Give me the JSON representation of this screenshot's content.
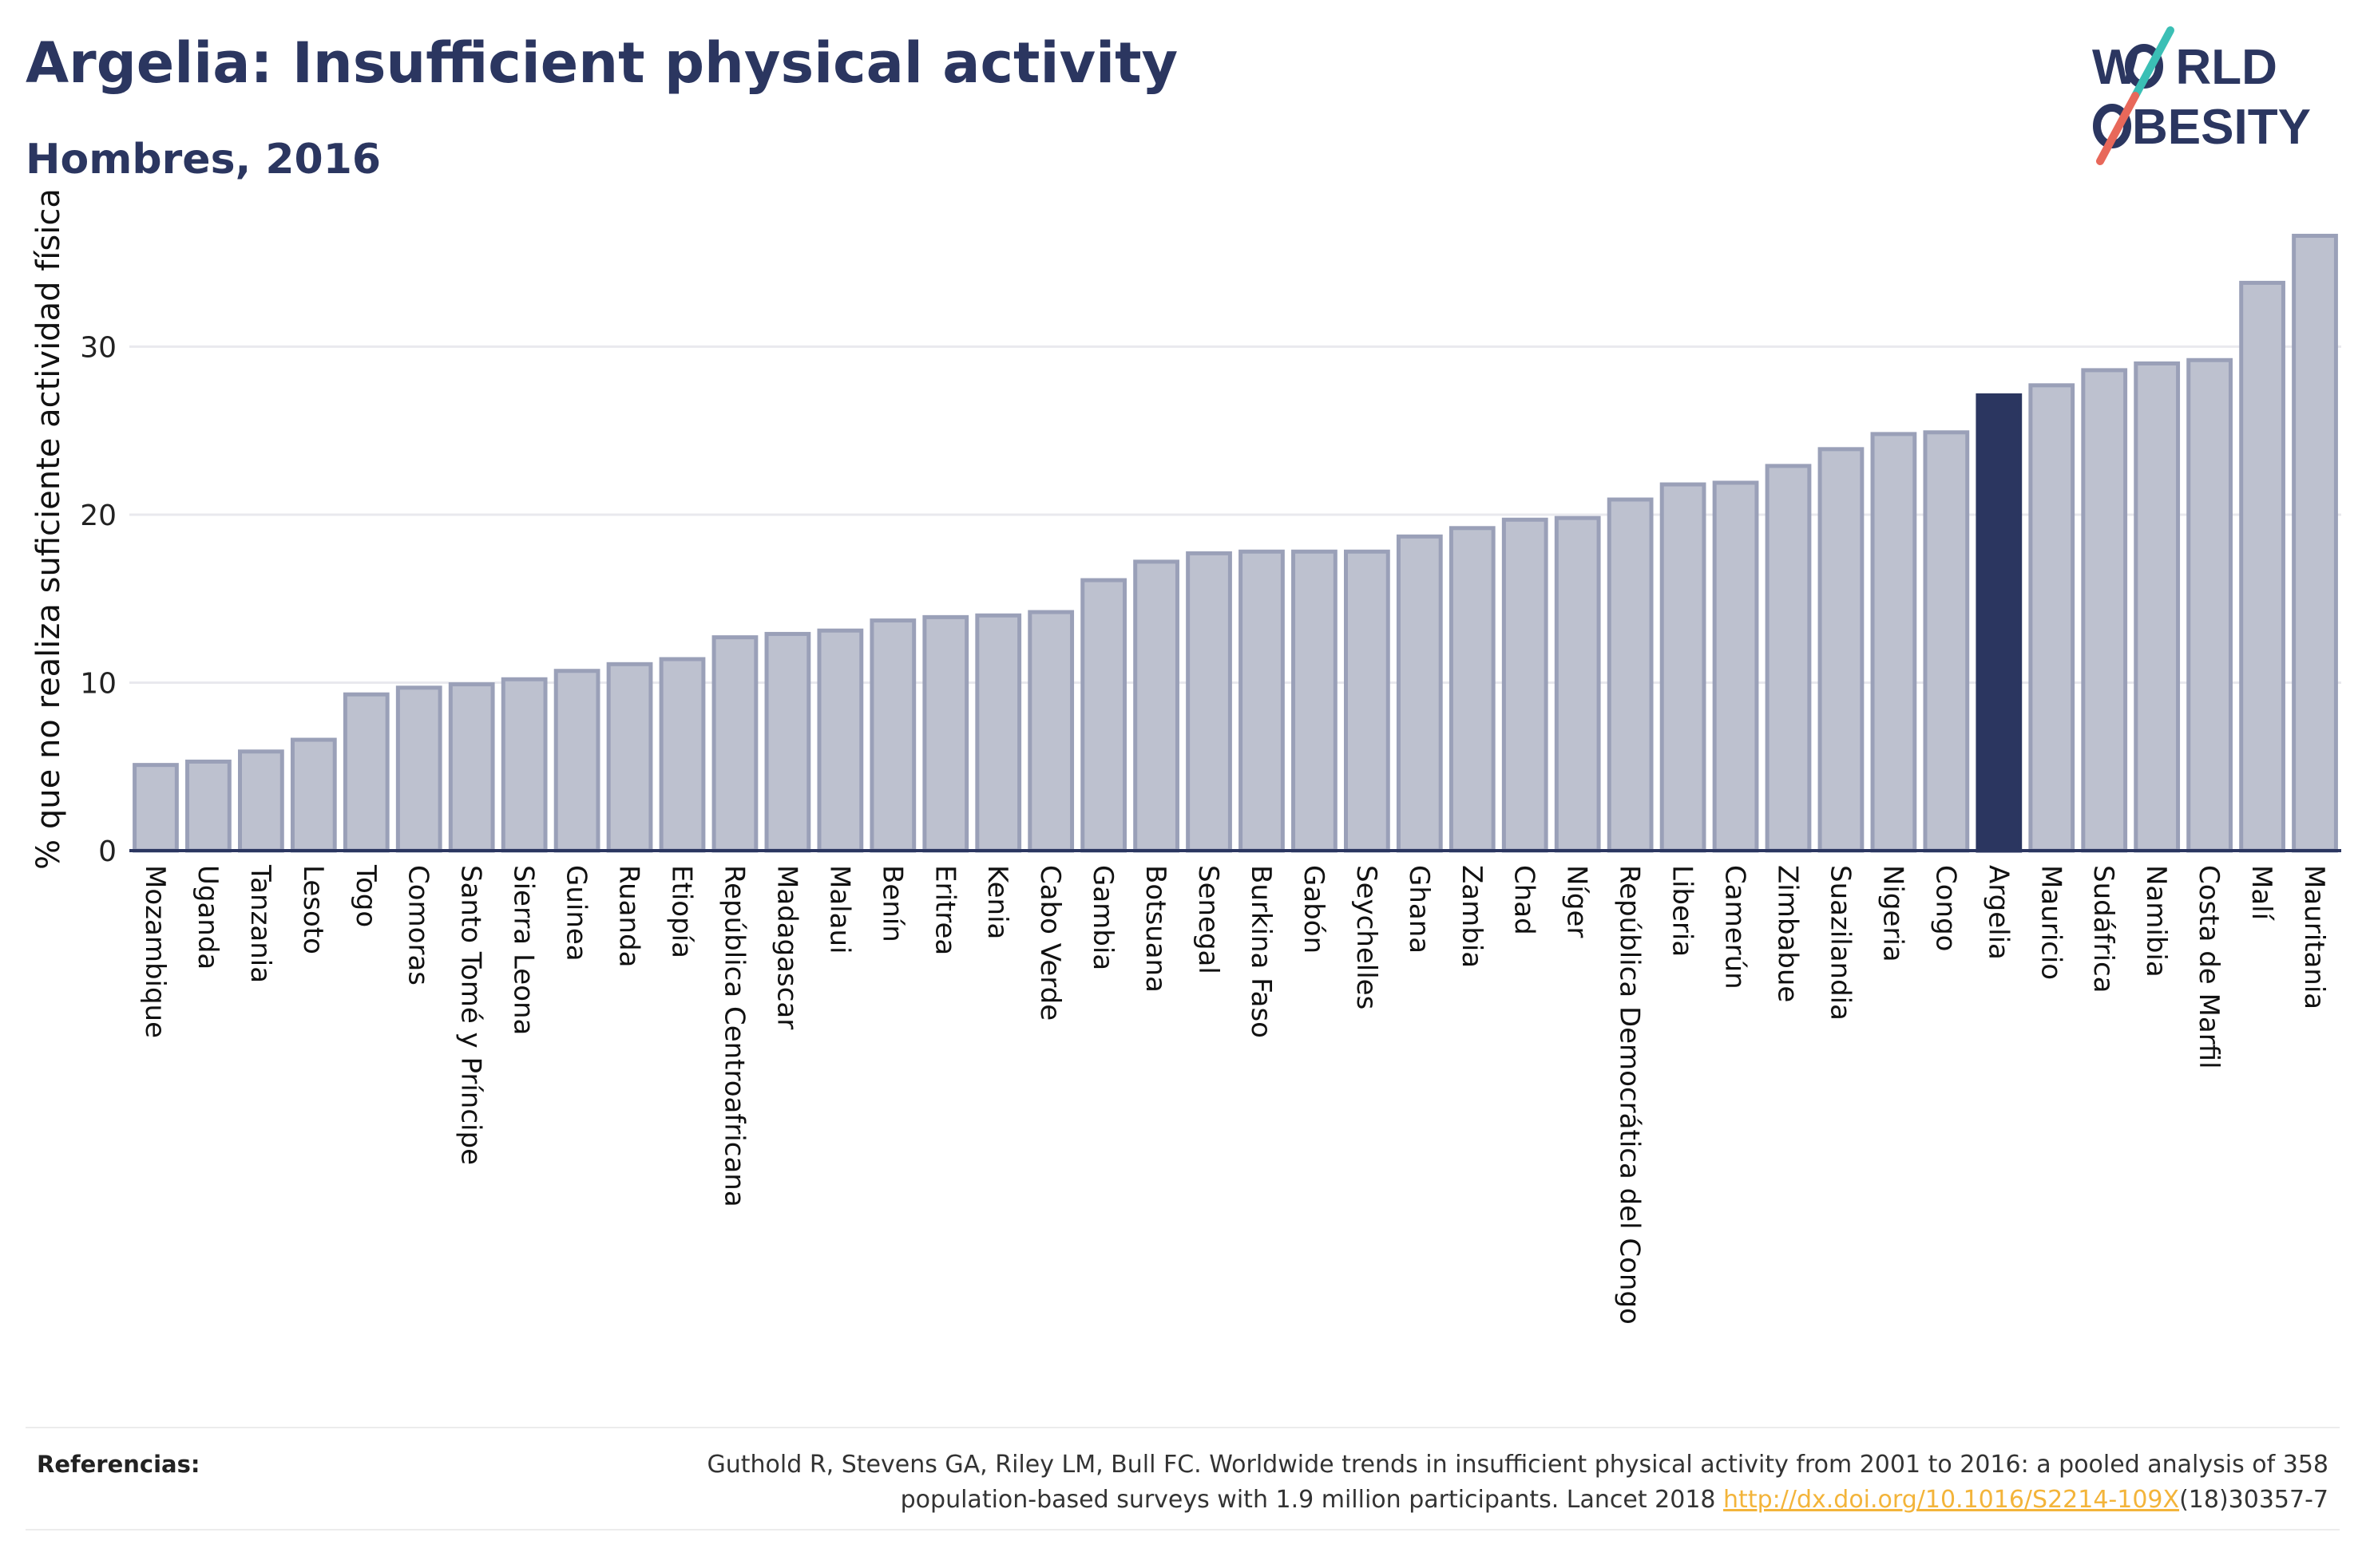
{
  "header": {
    "title": "Argelia: Insufficient physical activity",
    "subtitle": "Hombres, 2016"
  },
  "logo": {
    "line1": "W",
    "line1_rest": "RLD",
    "line2_rest": "BESITY",
    "slash_colors": [
      "#3bbfb5",
      "#e8685a"
    ],
    "text_color": "#2b3660"
  },
  "colors": {
    "bar": "#bdc1cf",
    "bar_stroke": "#9aa0b8",
    "highlight": "#2b3660",
    "grid": "#e9e9ee",
    "axis": "#2b3660"
  },
  "chart_data": {
    "type": "bar",
    "highlight": "Argelia",
    "ylabel": "% que no realiza suficiente actividad física",
    "ylim": [
      0,
      38
    ],
    "yticks": [
      0,
      10,
      20,
      30
    ],
    "categories": [
      "Mozambique",
      "Uganda",
      "Tanzania",
      "Lesoto",
      "Togo",
      "Comoras",
      "Santo Tomé y Príncipe",
      "Sierra Leona",
      "Guinea",
      "Ruanda",
      "Etiopía",
      "República Centroafricana",
      "Madagascar",
      "Malaui",
      "Benín",
      "Eritrea",
      "Kenia",
      "Cabo Verde",
      "Gambia",
      "Botsuana",
      "Senegal",
      "Burkina Faso",
      "Gabón",
      "Seychelles",
      "Ghana",
      "Zambia",
      "Chad",
      "Níger",
      "República Democrática del Congo",
      "Liberia",
      "Camerún",
      "Zimbabue",
      "Suazilandia",
      "Nigeria",
      "Congo",
      "Argelia",
      "Mauricio",
      "Sudáfrica",
      "Namibia",
      "Costa de Marfil",
      "Malí",
      "Mauritania"
    ],
    "values": [
      5.1,
      5.3,
      5.9,
      6.6,
      9.3,
      9.7,
      9.9,
      10.2,
      10.7,
      11.1,
      11.4,
      12.7,
      12.9,
      13.1,
      13.7,
      13.9,
      14.0,
      14.2,
      16.1,
      17.2,
      17.7,
      17.8,
      17.8,
      17.8,
      18.7,
      19.2,
      19.7,
      19.8,
      20.9,
      21.8,
      21.9,
      22.9,
      23.9,
      24.8,
      24.9,
      27.1,
      27.7,
      28.6,
      29.0,
      29.2,
      33.8,
      36.6
    ]
  },
  "references": {
    "label": "Referencias:",
    "line1": "Guthold R, Stevens GA, Riley LM, Bull FC. Worldwide trends in insufficient physical activity from 2001 to 2016: a pooled analysis of 358",
    "line2_pre": "population-based surveys with 1.9 million participants. Lancet 2018 ",
    "link": "http://dx.doi.org/10.1016/S2214-109X",
    "line2_post": "(18)30357-7"
  }
}
